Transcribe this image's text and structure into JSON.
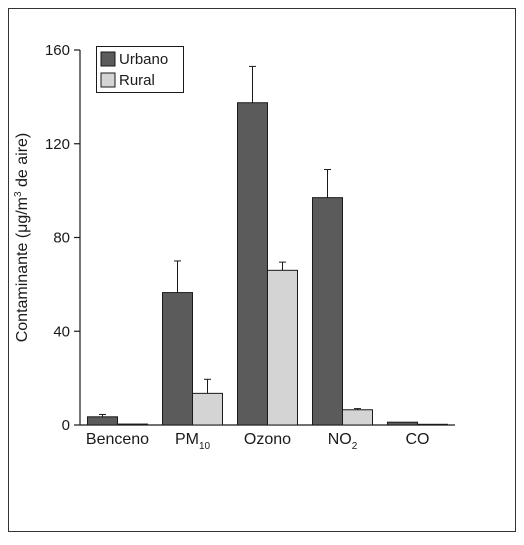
{
  "chart_data": {
    "type": "bar",
    "categories": [
      "Benceno",
      "PM10",
      "Ozono",
      "NO2",
      "CO"
    ],
    "category_labels": [
      {
        "base": "Benceno",
        "sub": ""
      },
      {
        "base": "PM",
        "sub": "10"
      },
      {
        "base": "Ozono",
        "sub": ""
      },
      {
        "base": "NO",
        "sub": "2"
      },
      {
        "base": "CO",
        "sub": ""
      }
    ],
    "series": [
      {
        "name": "Urbano",
        "color": "#5b5b5b",
        "values": [
          3.5,
          56.5,
          137.5,
          97,
          1.2
        ],
        "errors": [
          1.0,
          13.5,
          15.5,
          12,
          0
        ]
      },
      {
        "name": "Rural",
        "color": "#d4d4d4",
        "values": [
          0.4,
          13.5,
          66,
          6.5,
          0.3
        ],
        "errors": [
          0,
          6,
          3.5,
          0.5,
          0
        ]
      }
    ],
    "ylabel_parts": {
      "before": "Contaminante (μg/m",
      "sup": "3",
      "after": " de aire)"
    },
    "ylim": [
      0,
      160
    ],
    "yticks": [
      0,
      40,
      80,
      120,
      160
    ],
    "legend_position": "top-left",
    "grid": false
  }
}
